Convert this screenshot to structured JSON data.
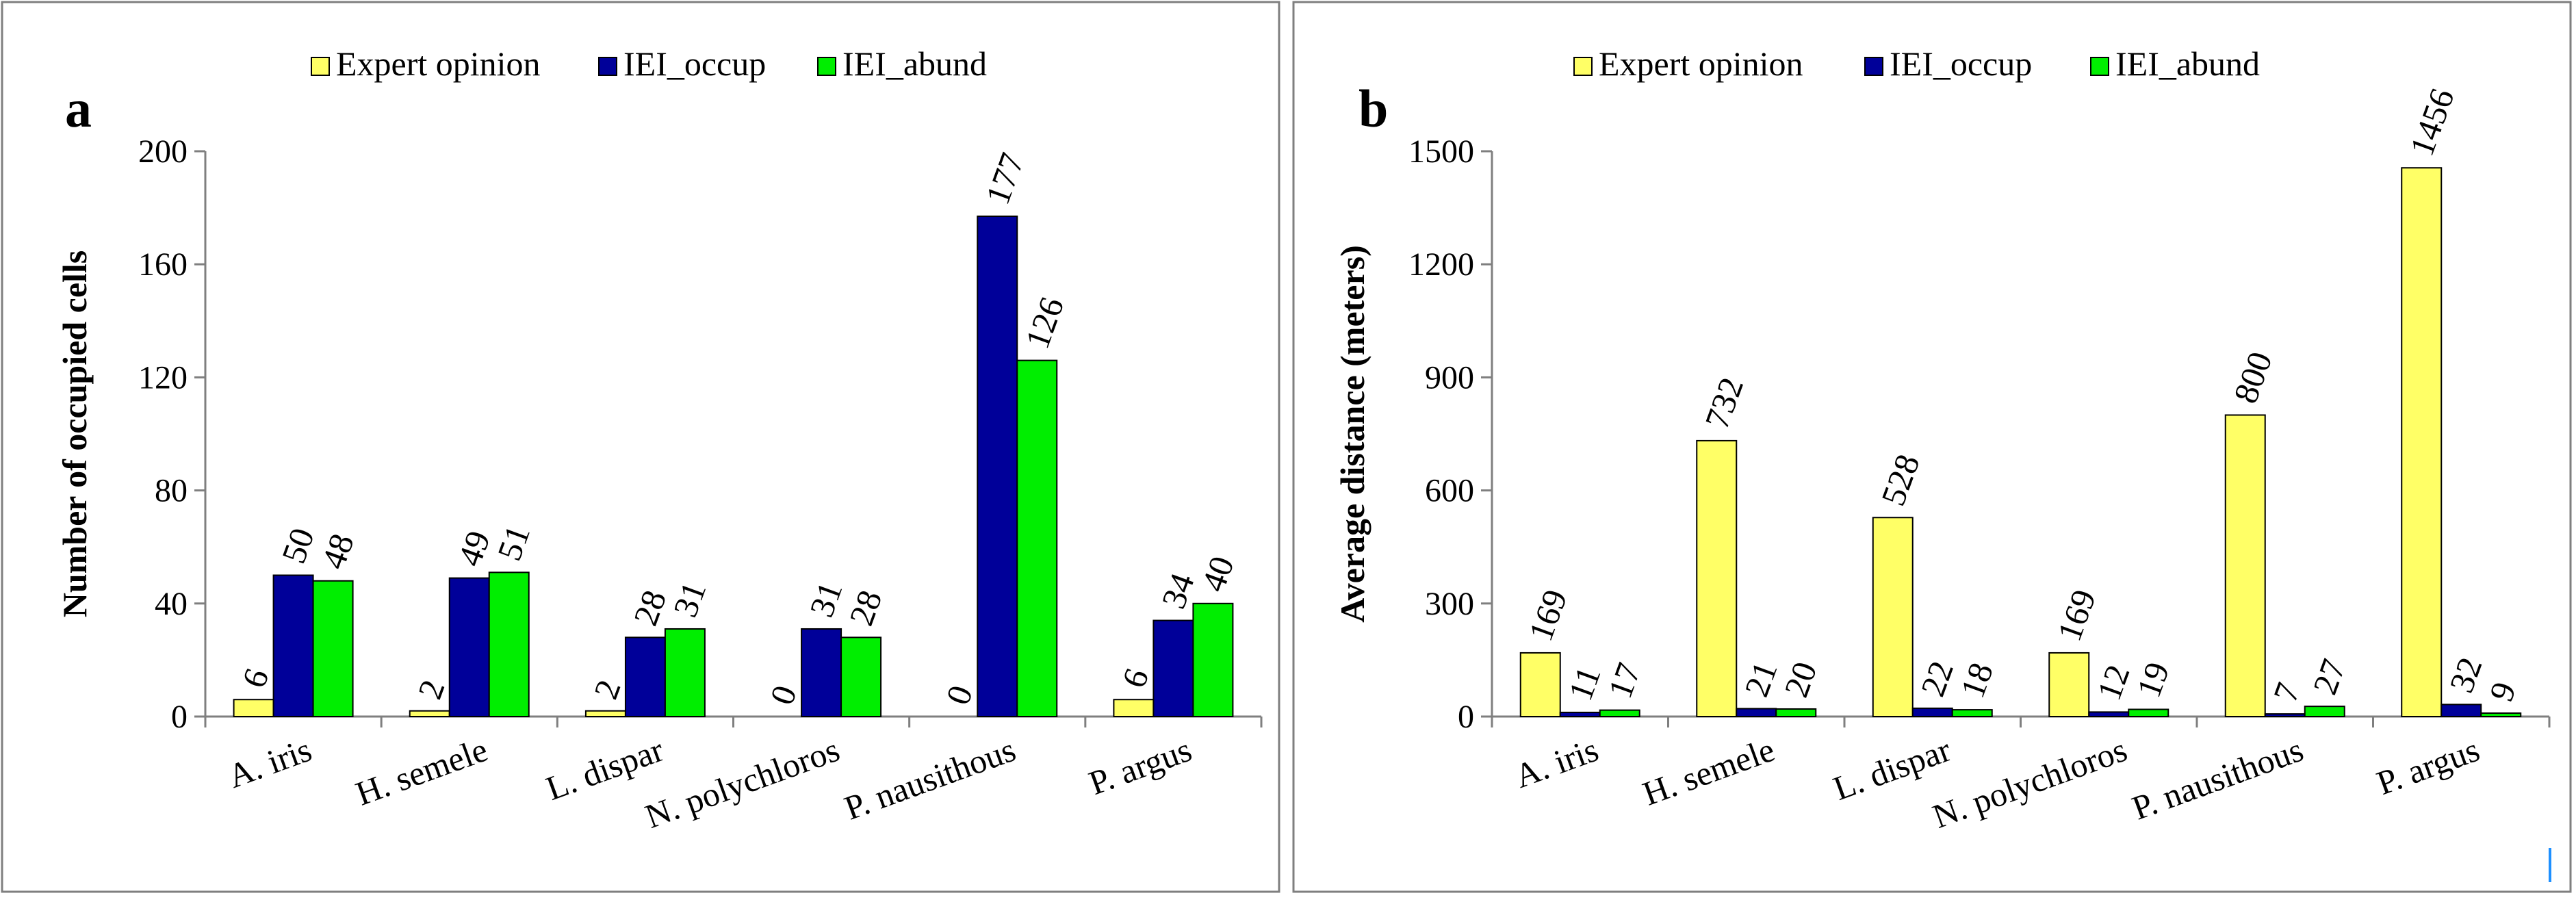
{
  "colors": {
    "expert": "#ffff66",
    "iei_occup": "#000099",
    "iei_abund": "#00ee00",
    "frame": "#7f7f7f",
    "axis": "#7f7f7f",
    "marker": "#1e90ff"
  },
  "panels": [
    {
      "panel_label": "a",
      "ylabel": "Number of occupied cells",
      "legend": [
        "Expert opinion",
        "IEI_occup",
        "IEI_abund"
      ]
    },
    {
      "panel_label": "b",
      "ylabel": "Average distance (meters)",
      "legend": [
        "Expert opinion",
        "IEI_occup",
        "IEI_abund"
      ]
    }
  ],
  "chart_data": [
    {
      "type": "bar",
      "title": "",
      "xlabel": "",
      "ylabel": "Number of occupied cells",
      "ylim": [
        0,
        200
      ],
      "yticks": [
        0,
        40,
        80,
        120,
        160,
        200
      ],
      "grid": false,
      "legend_position": "top-center",
      "categories": [
        "A. iris",
        "H. semele",
        "L. dispar",
        "N. polychloros",
        "P. nausithous",
        "P. argus"
      ],
      "series": [
        {
          "name": "Expert opinion",
          "values": [
            6,
            2,
            2,
            0,
            0,
            6
          ]
        },
        {
          "name": "IEI_occup",
          "values": [
            50,
            49,
            28,
            31,
            177,
            34
          ]
        },
        {
          "name": "IEI_abund",
          "values": [
            48,
            51,
            31,
            28,
            126,
            40
          ]
        }
      ]
    },
    {
      "type": "bar",
      "title": "",
      "xlabel": "",
      "ylabel": "Average distance (meters)",
      "ylim": [
        0,
        1500
      ],
      "yticks": [
        0,
        300,
        600,
        900,
        1200,
        1500
      ],
      "grid": false,
      "legend_position": "top-center",
      "categories": [
        "A. iris",
        "H. semele",
        "L. dispar",
        "N. polychloros",
        "P. nausithous",
        "P. argus"
      ],
      "series": [
        {
          "name": "Expert opinion",
          "values": [
            169,
            732,
            528,
            169,
            800,
            1456
          ]
        },
        {
          "name": "IEI_occup",
          "values": [
            11,
            21,
            22,
            12,
            7,
            32
          ]
        },
        {
          "name": "IEI_abund",
          "values": [
            17,
            20,
            18,
            19,
            27,
            9
          ]
        }
      ]
    }
  ]
}
